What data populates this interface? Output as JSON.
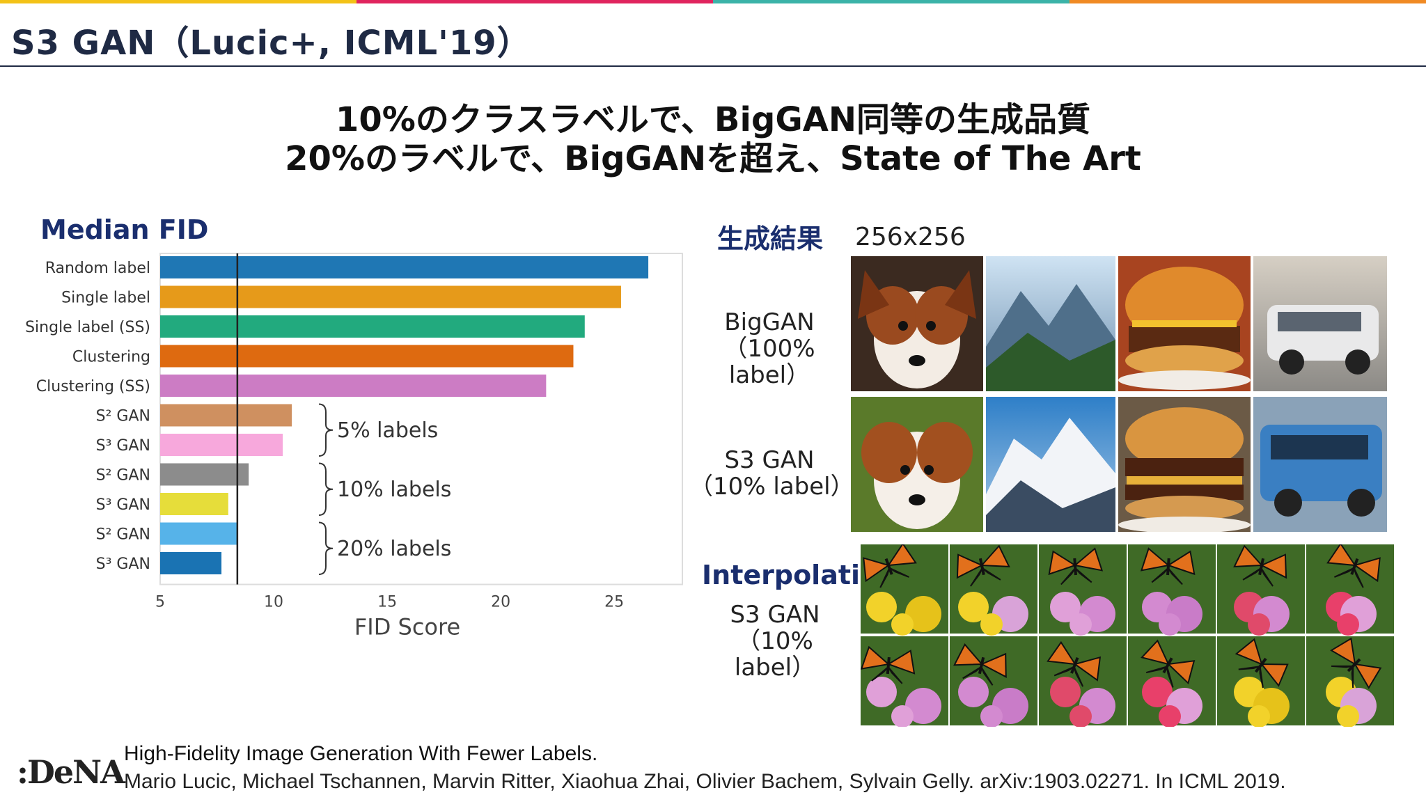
{
  "slide": {
    "title": "S3 GAN（Lucic+, ICML'19）",
    "headline_1": "10%のクラスラベルで、BigGAN同等の生成品質",
    "headline_2": "20%のラベルで、BigGANを超え、State of The Art",
    "top_bar_colors": [
      "#f3c217",
      "#e0245e",
      "#3bb3a8",
      "#f08a24"
    ]
  },
  "chart_section": {
    "label": "Median FID"
  },
  "chart_data": {
    "type": "bar",
    "orientation": "horizontal",
    "categories": [
      "Random label",
      "Single label",
      "Single label (SS)",
      "Clustering",
      "Clustering (SS)",
      "S² GAN",
      "S³ GAN",
      "S² GAN",
      "S³ GAN",
      "S² GAN",
      "S³ GAN"
    ],
    "values": [
      26.5,
      25.3,
      23.7,
      23.2,
      22.0,
      10.8,
      10.4,
      8.9,
      8.0,
      8.4,
      7.7
    ],
    "colors": [
      "#1f77b4",
      "#e69a1a",
      "#22aa7e",
      "#de6a10",
      "#cc7cc4",
      "#cf9060",
      "#f7a8dc",
      "#8c8c8c",
      "#e6dd3a",
      "#56b3e9",
      "#1a73b3"
    ],
    "reference_line": 8.4,
    "xlabel": "FID Score",
    "xlim": [
      5,
      28
    ],
    "xticks": [
      5,
      10,
      15,
      20,
      25
    ],
    "group_annotations": [
      {
        "label": "5% labels",
        "rows": [
          5,
          6
        ]
      },
      {
        "label": "10% labels",
        "rows": [
          7,
          8
        ]
      },
      {
        "label": "20% labels",
        "rows": [
          9,
          10
        ]
      }
    ]
  },
  "results_section": {
    "label": "生成結果",
    "resolution": "256x256",
    "rows": [
      {
        "line1": "BigGAN",
        "line2": "（100% label）"
      },
      {
        "line1": "S3 GAN",
        "line2": "（10% label）"
      }
    ],
    "image_icons": [
      "dog-image",
      "mountain-image",
      "burger-image",
      "van-image"
    ]
  },
  "interpolation_section": {
    "label": "Interpolation",
    "line1": "S3 GAN",
    "line2": "（10% label）"
  },
  "footer": {
    "logo": ":DeNA",
    "paper_title": "High-Fidelity Image Generation With Fewer Labels.",
    "citation": "Mario Lucic, Michael Tschannen, Marvin Ritter, Xiaohua Zhai, Olivier Bachem, Sylvain Gelly. arXiv:1903.02271. In ICML 2019."
  }
}
